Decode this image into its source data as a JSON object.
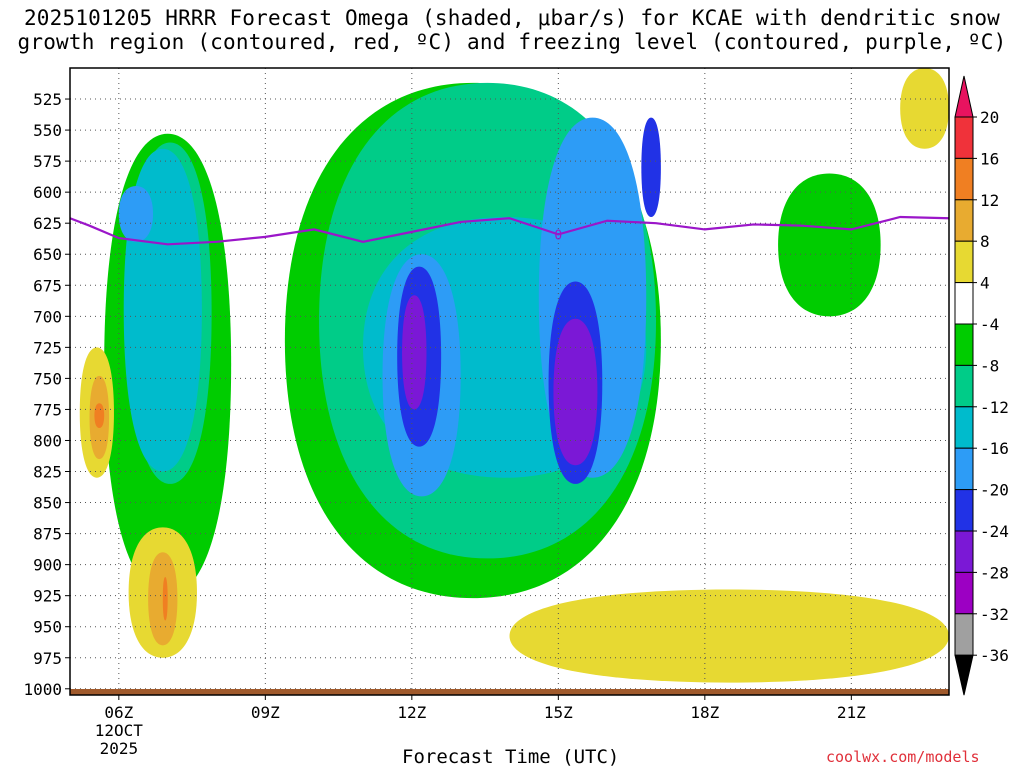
{
  "title": {
    "line1": "2025101205 HRRR Forecast Omega (shaded, μbar/s) for KCAE with dendritic snow",
    "line2": "growth region (contoured, red, ºC) and freezing level (contoured, purple, ºC)"
  },
  "xlabel": "Forecast Time (UTC)",
  "credit": "coolwx.com/models",
  "chart_data": {
    "type": "heatmap",
    "title": "2025101205 HRRR Forecast Omega (shaded, μbar/s) for KCAE with dendritic snow growth region (contoured, red, ºC) and freezing level (contoured, purple, ºC)",
    "xlabel": "Forecast Time (UTC)",
    "ylabel": "",
    "x_ticks": [
      "06Z",
      "09Z",
      "12Z",
      "15Z",
      "18Z",
      "21Z"
    ],
    "x_tick_hours": [
      6,
      9,
      12,
      15,
      18,
      21
    ],
    "x_date_label": [
      "12OCT",
      "2025"
    ],
    "xlim_hours": [
      5,
      23
    ],
    "y_ticks": [
      525,
      550,
      575,
      600,
      625,
      650,
      675,
      700,
      725,
      750,
      775,
      800,
      825,
      850,
      875,
      900,
      925,
      950,
      975,
      1000
    ],
    "ylim_hpa": [
      1005,
      500
    ],
    "grid": true,
    "colorbar": {
      "placement": "right",
      "labels": [
        "20",
        "16",
        "12",
        "8",
        "4",
        "-4",
        "-8",
        "-12",
        "-16",
        "-20",
        "-24",
        "-28",
        "-32",
        "-36"
      ],
      "colors": [
        "#e8135f",
        "#f0323a",
        "#f07f22",
        "#e8ab30",
        "#e7d932",
        "#ffffff",
        "#00cc00",
        "#00cc88",
        "#00bbcc",
        "#2d9cf6",
        "#2132e6",
        "#7b18d6",
        "#9c00c3",
        "#a0a0a0",
        "#000000"
      ]
    },
    "freezing_level": {
      "label": "0",
      "color": "#9b16c9",
      "hours": [
        5.0,
        5.4,
        6.0,
        7.0,
        8.0,
        9.0,
        10.0,
        11.0,
        12.0,
        13.0,
        14.0,
        15.0,
        16.0,
        17.0,
        18.0,
        19.0,
        20.0,
        21.0,
        22.0,
        23.0
      ],
      "hpa": [
        621,
        627,
        637,
        642,
        640,
        636,
        630,
        640,
        632,
        624,
        621,
        634,
        623,
        625,
        630,
        626,
        627,
        630,
        620,
        621
      ]
    },
    "shaded_regions": [
      {
        "value_band": "-8 to -4",
        "color": "#00cc00",
        "hours": [
          [
            5.7,
            8.3
          ],
          [
            9.4,
            17.1
          ],
          [
            19.5,
            21.6
          ]
        ],
        "hpa": [
          [
            553,
            925
          ],
          [
            512,
            927
          ],
          [
            585,
            700
          ]
        ]
      },
      {
        "value_band": "-12 to -8",
        "color": "#00cc88",
        "hours": [
          [
            6.2,
            7.9
          ],
          [
            10.1,
            17.0
          ]
        ],
        "hpa": [
          [
            560,
            835
          ],
          [
            512,
            895
          ]
        ]
      },
      {
        "value_band": "-16 to -12",
        "color": "#00bbcc",
        "hours": [
          [
            6.1,
            7.7
          ],
          [
            11.0,
            16.8
          ]
        ],
        "hpa": [
          [
            565,
            825
          ],
          [
            620,
            830
          ]
        ]
      },
      {
        "value_band": "-20 to -16",
        "color": "#2d9cf6",
        "hours": [
          [
            6.0,
            6.7
          ],
          [
            11.4,
            13.0
          ],
          [
            14.6,
            16.8
          ]
        ],
        "hpa": [
          [
            595,
            640
          ],
          [
            650,
            845
          ],
          [
            540,
            830
          ]
        ]
      },
      {
        "value_band": "-24 to -20",
        "color": "#2132e6",
        "hours": [
          [
            11.7,
            12.6
          ],
          [
            14.8,
            15.9
          ],
          [
            16.7,
            17.1
          ]
        ],
        "hpa": [
          [
            660,
            805
          ],
          [
            672,
            835
          ],
          [
            540,
            620
          ]
        ]
      },
      {
        "value_band": "-28 to -24",
        "color": "#7b18d6",
        "hours": [
          [
            11.8,
            12.3
          ],
          [
            14.9,
            15.8
          ]
        ],
        "hpa": [
          [
            683,
            775
          ],
          [
            702,
            820
          ]
        ]
      },
      {
        "value_band": "4 to 8",
        "color": "#e7d932",
        "hours": [
          [
            5.2,
            5.9
          ],
          [
            6.2,
            7.6
          ],
          [
            14.0,
            23.0
          ],
          [
            22.0,
            23.0
          ]
        ],
        "hpa": [
          [
            725,
            830
          ],
          [
            870,
            975
          ],
          [
            920,
            995
          ],
          [
            500,
            565
          ]
        ]
      },
      {
        "value_band": "8 to 12",
        "color": "#e8ab30",
        "hours": [
          [
            5.4,
            5.8
          ],
          [
            6.6,
            7.2
          ]
        ],
        "hpa": [
          [
            748,
            815
          ],
          [
            890,
            965
          ]
        ]
      },
      {
        "value_band": "12 to 16",
        "color": "#f07f22",
        "hours": [
          [
            5.5,
            5.7
          ],
          [
            6.9,
            7.0
          ]
        ],
        "hpa": [
          [
            770,
            790
          ],
          [
            910,
            945
          ]
        ]
      }
    ]
  }
}
